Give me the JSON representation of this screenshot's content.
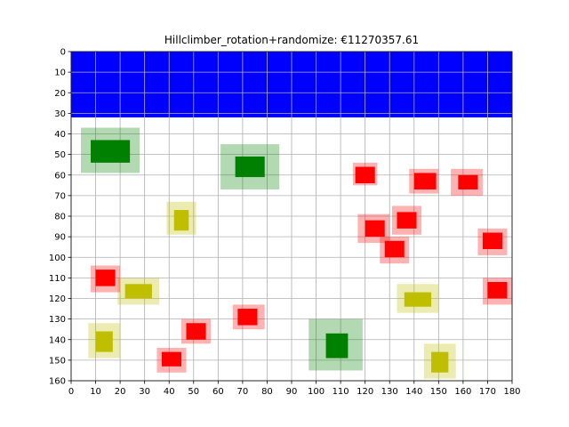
{
  "chart_data": {
    "type": "scatter",
    "title": "Hillclimber_rotation+randomize: €11270357.61",
    "xlabel": "",
    "ylabel": "",
    "xlim": [
      0,
      180
    ],
    "ylim": [
      160,
      0
    ],
    "y_inverted": true,
    "grid": true,
    "x_ticks": [
      0,
      10,
      20,
      30,
      40,
      50,
      60,
      70,
      80,
      90,
      100,
      110,
      120,
      130,
      140,
      150,
      160,
      170,
      180
    ],
    "y_ticks": [
      0,
      10,
      20,
      30,
      40,
      50,
      60,
      70,
      80,
      90,
      100,
      110,
      120,
      130,
      140,
      150,
      160
    ],
    "water": {
      "x": [
        0,
        180
      ],
      "y": [
        0,
        32
      ],
      "color": "#0000ff"
    },
    "colors": {
      "green": "#008000",
      "yellow": "#bfbf00",
      "red": "#ff0000"
    },
    "houses": [
      {
        "color": "green",
        "x": [
          8,
          24
        ],
        "y": [
          43,
          54
        ],
        "halo": [
          4,
          28,
          37,
          59
        ]
      },
      {
        "color": "green",
        "x": [
          67,
          79
        ],
        "y": [
          51,
          61
        ],
        "halo": [
          61,
          85,
          45,
          67
        ]
      },
      {
        "color": "green",
        "x": [
          104,
          113
        ],
        "y": [
          137,
          149
        ],
        "halo": [
          97,
          119,
          130,
          155
        ]
      },
      {
        "color": "yellow",
        "x": [
          42,
          48
        ],
        "y": [
          77,
          87
        ],
        "halo": [
          39,
          51,
          73,
          89
        ]
      },
      {
        "color": "yellow",
        "x": [
          22,
          33
        ],
        "y": [
          113,
          120
        ],
        "halo": [
          19,
          36,
          110,
          123
        ]
      },
      {
        "color": "yellow",
        "x": [
          10,
          17
        ],
        "y": [
          136,
          146
        ],
        "halo": [
          7,
          20,
          132,
          149
        ]
      },
      {
        "color": "yellow",
        "x": [
          136,
          147
        ],
        "y": [
          117,
          124
        ],
        "halo": [
          133,
          150,
          113,
          127
        ]
      },
      {
        "color": "yellow",
        "x": [
          147,
          154
        ],
        "y": [
          146,
          156
        ],
        "halo": [
          144,
          157,
          142,
          159
        ]
      },
      {
        "color": "red",
        "x": [
          116,
          124
        ],
        "y": [
          56,
          64
        ],
        "halo": [
          115,
          125,
          54,
          65
        ]
      },
      {
        "color": "red",
        "x": [
          140,
          149
        ],
        "y": [
          59,
          67
        ],
        "halo": [
          138,
          150,
          57,
          69
        ]
      },
      {
        "color": "red",
        "x": [
          158,
          166
        ],
        "y": [
          60,
          67
        ],
        "halo": [
          155,
          168,
          57,
          70
        ]
      },
      {
        "color": "red",
        "x": [
          120,
          128
        ],
        "y": [
          82,
          90
        ],
        "halo": [
          117,
          130,
          79,
          93
        ]
      },
      {
        "color": "red",
        "x": [
          133,
          141
        ],
        "y": [
          78,
          86
        ],
        "halo": [
          131,
          143,
          75,
          89
        ]
      },
      {
        "color": "red",
        "x": [
          128,
          136
        ],
        "y": [
          92,
          100
        ],
        "halo": [
          126,
          138,
          90,
          103
        ]
      },
      {
        "color": "red",
        "x": [
          168,
          176
        ],
        "y": [
          88,
          96
        ],
        "halo": [
          166,
          178,
          86,
          99
        ]
      },
      {
        "color": "red",
        "x": [
          10,
          18
        ],
        "y": [
          106,
          114
        ],
        "halo": [
          8,
          20,
          104,
          117
        ]
      },
      {
        "color": "red",
        "x": [
          170,
          178
        ],
        "y": [
          112,
          120
        ],
        "halo": [
          168,
          180,
          110,
          123
        ]
      },
      {
        "color": "red",
        "x": [
          68,
          76
        ],
        "y": [
          125,
          133
        ],
        "halo": [
          66,
          79,
          123,
          135
        ]
      },
      {
        "color": "red",
        "x": [
          47,
          55
        ],
        "y": [
          132,
          140
        ],
        "halo": [
          45,
          57,
          130,
          142
        ]
      },
      {
        "color": "red",
        "x": [
          37,
          45
        ],
        "y": [
          146,
          153
        ],
        "halo": [
          35,
          47,
          144,
          156
        ]
      }
    ]
  }
}
